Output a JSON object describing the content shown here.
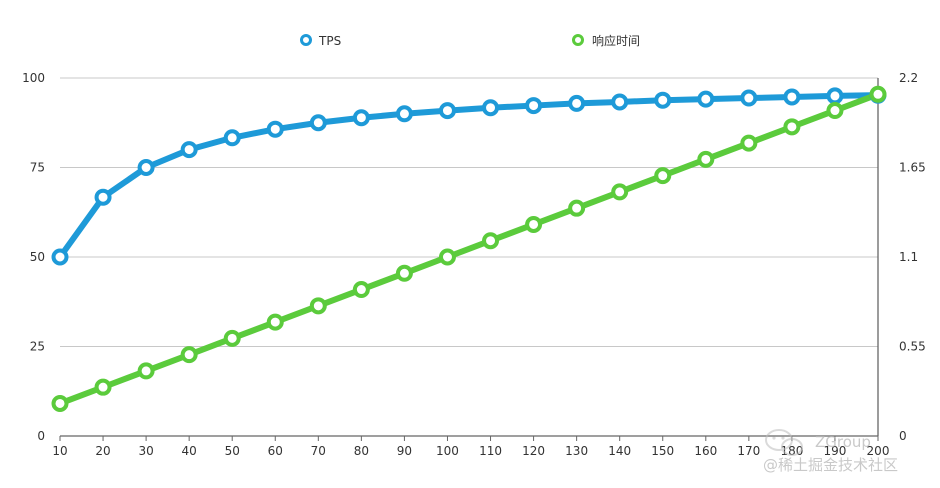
{
  "chart_data": {
    "type": "line",
    "title": "",
    "xlabel": "",
    "ylabel": "",
    "x": [
      10,
      20,
      30,
      40,
      50,
      60,
      70,
      80,
      90,
      100,
      110,
      120,
      130,
      140,
      150,
      160,
      170,
      180,
      190,
      200
    ],
    "xtick_labels": [
      "10",
      "20",
      "30",
      "40",
      "50",
      "60",
      "70",
      "80",
      "90",
      "100",
      "110",
      "120",
      "130",
      "140",
      "150",
      "160",
      "170",
      "180",
      "190",
      "200"
    ],
    "y_left": {
      "ylim": [
        0,
        100
      ],
      "ticks": [
        "0",
        "25",
        "50",
        "75",
        "100"
      ]
    },
    "y_right": {
      "ylim": [
        0,
        2.2
      ],
      "ticks": [
        "0",
        "0.55",
        "1.1",
        "1.65",
        "2.2"
      ]
    },
    "grid": true,
    "legend_position": "top",
    "series": [
      {
        "name": "TPS",
        "axis": "left",
        "color": "#1e9ad8",
        "values": [
          50,
          66.7,
          75,
          80,
          83.3,
          85.7,
          87.5,
          88.9,
          90,
          90.9,
          91.7,
          92.3,
          92.9,
          93.3,
          93.8,
          94.1,
          94.4,
          94.7,
          95,
          95.2
        ]
      },
      {
        "name": "响应时间",
        "axis": "right",
        "color": "#5bcb3c",
        "values": [
          0.2,
          0.3,
          0.4,
          0.5,
          0.6,
          0.7,
          0.8,
          0.9,
          1.0,
          1.1,
          1.2,
          1.3,
          1.4,
          1.5,
          1.6,
          1.7,
          1.8,
          1.9,
          2.0,
          2.1
        ]
      }
    ]
  },
  "watermark": {
    "line1": "ZGroup",
    "line2": "@稀土掘金技术社区"
  }
}
